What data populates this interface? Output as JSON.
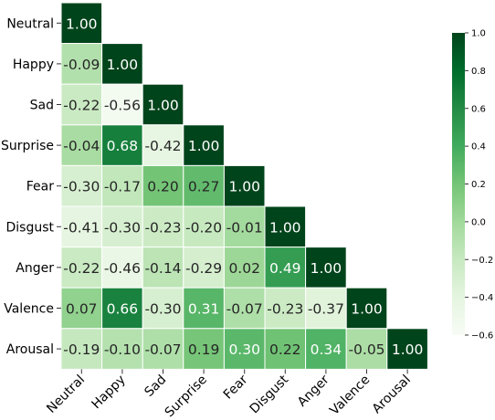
{
  "chart_data": {
    "type": "heatmap",
    "layout": "lower-triangle",
    "labels": [
      "Neutral",
      "Happy",
      "Sad",
      "Surprise",
      "Fear",
      "Disgust",
      "Anger",
      "Valence",
      "Arousal"
    ],
    "matrix": [
      [
        1.0
      ],
      [
        -0.09,
        1.0
      ],
      [
        -0.22,
        -0.56,
        1.0
      ],
      [
        -0.04,
        0.68,
        -0.42,
        1.0
      ],
      [
        -0.3,
        -0.17,
        0.2,
        0.27,
        1.0
      ],
      [
        -0.41,
        -0.3,
        -0.23,
        -0.2,
        -0.01,
        1.0
      ],
      [
        -0.22,
        -0.46,
        -0.14,
        -0.29,
        0.02,
        0.49,
        1.0
      ],
      [
        0.07,
        0.66,
        -0.3,
        0.31,
        -0.07,
        -0.23,
        -0.37,
        1.0
      ],
      [
        -0.19,
        -0.1,
        -0.07,
        0.19,
        0.3,
        0.22,
        0.34,
        -0.05,
        1.0
      ]
    ],
    "colorscale": {
      "name": "Greens",
      "vmin": -0.6,
      "vmax": 1.0,
      "ticks": [
        1.0,
        0.8,
        0.6,
        0.4,
        0.2,
        0.0,
        -0.2,
        -0.4,
        -0.6
      ],
      "tick_labels": [
        "1.0",
        "0.8",
        "0.6",
        "0.4",
        "0.2",
        "0.0",
        "−0.2",
        "−0.4",
        "−0.6"
      ],
      "stops": [
        "#f7fcf5",
        "#e5f5e0",
        "#c7e9c0",
        "#a1d99b",
        "#74c476",
        "#41ab5d",
        "#238b45",
        "#006d2c",
        "#00441b"
      ]
    }
  }
}
